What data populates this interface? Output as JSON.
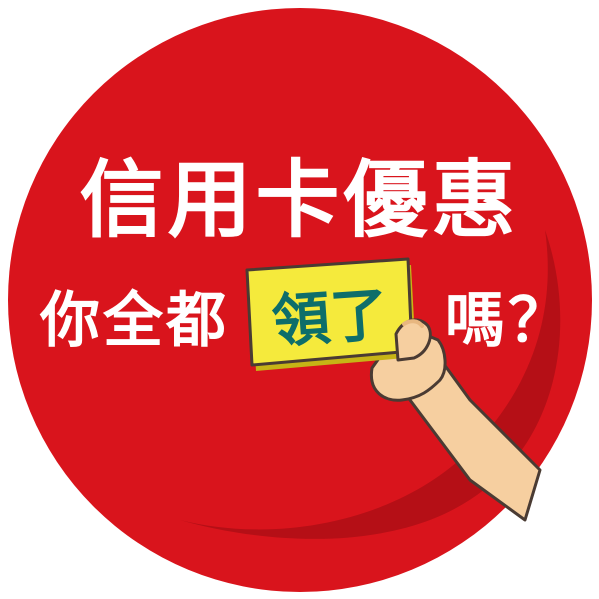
{
  "colors": {
    "circle_red": "#d9141c",
    "circle_shadow": "#b00d14",
    "card_yellow": "#f5ea3c",
    "card_text_teal": "#0e6e6a",
    "hand_skin": "#f6cfa0",
    "outline": "#4a3b33"
  },
  "title": "信用卡優惠",
  "subtitle": {
    "before": "你全都",
    "highlight": "領了",
    "after": "嗎？"
  }
}
